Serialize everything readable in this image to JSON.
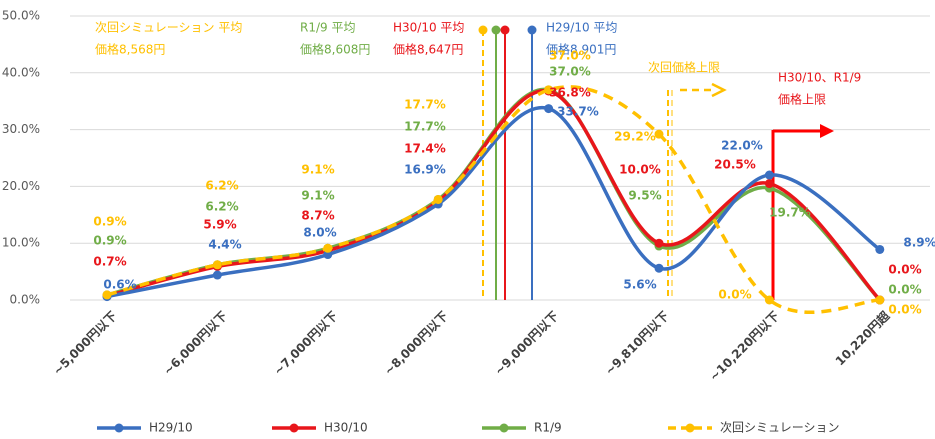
{
  "chart_data": {
    "type": "line",
    "categories": [
      "~5,000円以下",
      "~6,000円以下",
      "~7,000円以下",
      "~8,000円以下",
      "~9,000円以下",
      "~9,810円以下",
      "~10,220円以下",
      "10,220円超"
    ],
    "series": [
      {
        "name": "H29/10",
        "color": "#3a6fc0",
        "dashed": false,
        "values": [
          0.6,
          4.4,
          8.0,
          16.9,
          33.7,
          5.6,
          22.0,
          8.9
        ],
        "value_labels": [
          "0.6%",
          "4.4%",
          "8.0%",
          "16.9%",
          "33.7%",
          "5.6%",
          "22.0%",
          "8.9%"
        ]
      },
      {
        "name": "H30/10",
        "color": "#e8161b",
        "dashed": false,
        "values": [
          0.7,
          5.9,
          8.7,
          17.4,
          36.8,
          10.0,
          20.5,
          0.0
        ],
        "value_labels": [
          "0.7%",
          "5.9%",
          "8.7%",
          "17.4%",
          "36.8%",
          "10.0%",
          "20.5%",
          "0.0%"
        ]
      },
      {
        "name": "R1/9",
        "color": "#70ad47",
        "dashed": false,
        "values": [
          0.9,
          6.2,
          9.1,
          17.7,
          37.0,
          9.5,
          19.7,
          0.0
        ],
        "value_labels": [
          "0.9%",
          "6.2%",
          "9.1%",
          "17.7%",
          "37.0%",
          "9.5%",
          "19.7%",
          "0.0%"
        ]
      },
      {
        "name": "次回シミュレーション",
        "color": "#ffc000",
        "dashed": true,
        "values": [
          0.9,
          6.2,
          9.1,
          17.7,
          37.0,
          29.2,
          0.0,
          0.0
        ],
        "value_labels": [
          "0.9%",
          "6.2%",
          "9.1%",
          "17.7%",
          "37.0%",
          "29.2%",
          "0.0%",
          "0.0%"
        ]
      }
    ],
    "ylim": [
      0,
      50
    ],
    "yticks": [
      {
        "value": 0,
        "label": "0.0%"
      },
      {
        "value": 10,
        "label": "10.0%"
      },
      {
        "value": 20,
        "label": "20.0%"
      },
      {
        "value": 30,
        "label": "30.0%"
      },
      {
        "value": 40,
        "label": "40.0%"
      },
      {
        "value": 50,
        "label": "50.0%"
      }
    ],
    "grid": true,
    "legend": "bottom",
    "annotations": [
      {
        "lines": [
          "次回シミュレーション 平均",
          "価格8,568円"
        ],
        "color": "#ffc000"
      },
      {
        "lines": [
          "R1/9 平均",
          "価格8,608円"
        ],
        "color": "#70ad47"
      },
      {
        "lines": [
          "H30/10 平均",
          "価格8,647円"
        ],
        "color": "#e8161b"
      },
      {
        "lines": [
          "H29/10 平均",
          "価格8,901円"
        ],
        "color": "#3a6fc0"
      },
      {
        "lines": [
          "次回価格上限"
        ],
        "color": "#ffc000"
      },
      {
        "lines": [
          "H30/10、R1/9",
          "価格上限"
        ],
        "color": "#e8161b"
      }
    ]
  }
}
